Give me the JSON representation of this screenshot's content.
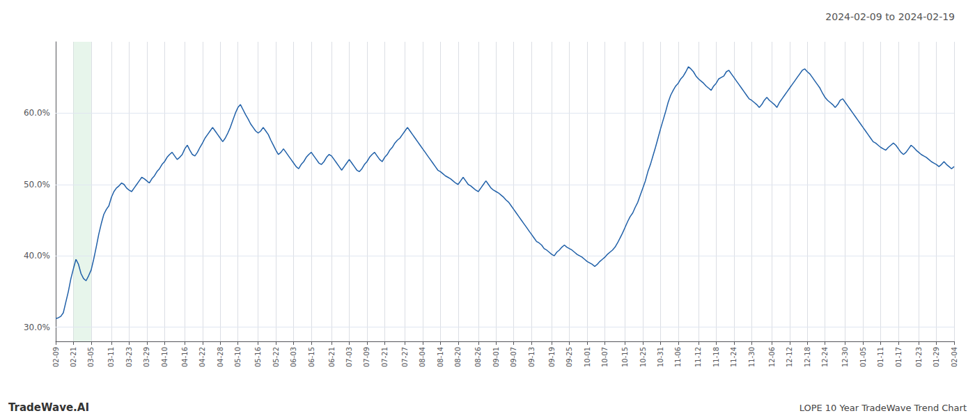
{
  "chart_data": {
    "type": "line",
    "title": "2024-02-09 to 2024-02-19",
    "annotations": [
      "TradeWave.AI",
      "LOPE 10 Year TradeWave Trend Chart"
    ],
    "color": "#2060a8",
    "grid": true,
    "highlight": {
      "x": [
        "02-21",
        "03-05"
      ],
      "color": "#d4edda"
    },
    "ylim": [
      28.0,
      70.0
    ],
    "yticks": [
      {
        "value": 30.0,
        "label": "30.0%"
      },
      {
        "value": 40.0,
        "label": "40.0%"
      },
      {
        "value": 50.0,
        "label": "50.0%"
      },
      {
        "value": 60.0,
        "label": "60.0%"
      }
    ],
    "categories": [
      "02-09",
      null,
      null,
      null,
      null,
      null,
      null,
      "02-21",
      null,
      null,
      null,
      null,
      null,
      null,
      "03-05",
      null,
      null,
      null,
      null,
      null,
      null,
      null,
      "03-11",
      null,
      null,
      null,
      null,
      null,
      null,
      "03-23",
      null,
      null,
      null,
      null,
      null,
      null,
      "03-29",
      null,
      null,
      null,
      null,
      null,
      null,
      "04-10",
      null,
      null,
      null,
      null,
      null,
      null,
      null,
      "04-16",
      null,
      null,
      null,
      null,
      null,
      null,
      "04-22",
      null,
      null,
      null,
      null,
      null,
      null,
      "04-28",
      null,
      null,
      null,
      null,
      null,
      null,
      "05-10",
      null,
      null,
      null,
      null,
      null,
      null,
      null,
      "05-16",
      null,
      null,
      null,
      null,
      null,
      null,
      "05-22",
      null,
      null,
      null,
      null,
      null,
      null,
      "06-03",
      null,
      null,
      null,
      null,
      null,
      null,
      "06-15",
      null,
      null,
      null,
      null,
      null,
      null,
      null,
      "06-21",
      null,
      null,
      null,
      null,
      null,
      null,
      "07-03",
      null,
      null,
      null,
      null,
      null,
      null,
      "07-09",
      null,
      null,
      null,
      null,
      null,
      null,
      "07-21",
      null,
      null,
      null,
      null,
      null,
      null,
      null,
      "07-27",
      null,
      null,
      null,
      null,
      null,
      null,
      "08-04",
      null,
      null,
      null,
      null,
      null,
      null,
      "08-14",
      null,
      null,
      null,
      null,
      null,
      null,
      "08-20",
      null,
      null,
      null,
      null,
      null,
      null,
      null,
      "08-26",
      null,
      null,
      null,
      null,
      null,
      null,
      "09-01",
      null,
      null,
      null,
      null,
      null,
      null,
      "09-07",
      null,
      null,
      null,
      null,
      null,
      null,
      "09-13",
      null,
      null,
      null,
      null,
      null,
      null,
      null,
      "09-19",
      null,
      null,
      null,
      null,
      null,
      null,
      "09-25",
      null,
      null,
      null,
      null,
      null,
      null,
      "10-01",
      null,
      null,
      null,
      null,
      null,
      null,
      "10-07",
      null,
      null,
      null,
      null,
      null,
      null,
      null,
      "10-15",
      null,
      null,
      null,
      null,
      null,
      null,
      "10-25",
      null,
      null,
      null,
      null,
      null,
      null,
      "10-31",
      null,
      null,
      null,
      null,
      null,
      null,
      "11-06",
      null,
      null,
      null,
      null,
      null,
      null,
      null,
      "11-12",
      null,
      null,
      null,
      null,
      null,
      null,
      "11-18",
      null,
      null,
      null,
      null,
      null,
      null,
      "11-24",
      null,
      null,
      null,
      null,
      null,
      null,
      "11-30",
      null,
      null,
      null,
      null,
      null,
      null,
      null,
      "12-06",
      null,
      null,
      null,
      null,
      null,
      null,
      "12-12",
      null,
      null,
      null,
      null,
      null,
      null,
      "12-18",
      null,
      null,
      null,
      null,
      null,
      null,
      "12-24",
      null,
      null,
      null,
      null,
      null,
      null,
      null,
      "12-30",
      null,
      null,
      null,
      null,
      null,
      null,
      "01-05",
      null,
      null,
      null,
      null,
      null,
      null,
      "01-11",
      null,
      null,
      null,
      null,
      null,
      null,
      "01-17",
      null,
      null,
      null,
      null,
      null,
      null,
      null,
      "01-23",
      null,
      null,
      null,
      null,
      null,
      null,
      "01-29",
      null,
      null,
      null,
      null,
      null,
      null,
      "02-04"
    ],
    "values": [
      31.2,
      31.3,
      31.5,
      32.0,
      33.5,
      35.0,
      36.8,
      38.2,
      39.5,
      38.8,
      37.5,
      36.8,
      36.5,
      37.2,
      38.0,
      39.5,
      41.2,
      43.0,
      44.5,
      45.8,
      46.5,
      47.0,
      48.2,
      49.0,
      49.5,
      49.8,
      50.2,
      50.0,
      49.5,
      49.2,
      49.0,
      49.5,
      50.0,
      50.5,
      51.0,
      50.8,
      50.5,
      50.2,
      50.8,
      51.2,
      51.8,
      52.2,
      52.8,
      53.2,
      53.8,
      54.2,
      54.5,
      54.0,
      53.5,
      53.8,
      54.2,
      55.0,
      55.5,
      54.8,
      54.2,
      54.0,
      54.5,
      55.2,
      55.8,
      56.5,
      57.0,
      57.5,
      58.0,
      57.5,
      57.0,
      56.5,
      56.0,
      56.5,
      57.2,
      58.0,
      59.0,
      60.0,
      60.8,
      61.2,
      60.5,
      59.8,
      59.2,
      58.5,
      58.0,
      57.5,
      57.2,
      57.5,
      58.0,
      57.5,
      57.0,
      56.2,
      55.5,
      54.8,
      54.2,
      54.5,
      55.0,
      54.5,
      54.0,
      53.5,
      53.0,
      52.5,
      52.2,
      52.8,
      53.2,
      53.8,
      54.2,
      54.5,
      54.0,
      53.5,
      53.0,
      52.8,
      53.2,
      53.8,
      54.2,
      54.0,
      53.5,
      53.0,
      52.5,
      52.0,
      52.5,
      53.0,
      53.5,
      53.0,
      52.5,
      52.0,
      51.8,
      52.2,
      52.8,
      53.2,
      53.8,
      54.2,
      54.5,
      54.0,
      53.5,
      53.2,
      53.8,
      54.2,
      54.8,
      55.2,
      55.8,
      56.2,
      56.5,
      57.0,
      57.5,
      58.0,
      57.5,
      57.0,
      56.5,
      56.0,
      55.5,
      55.0,
      54.5,
      54.0,
      53.5,
      53.0,
      52.5,
      52.0,
      51.8,
      51.5,
      51.2,
      51.0,
      50.8,
      50.5,
      50.2,
      50.0,
      50.5,
      51.0,
      50.5,
      50.0,
      49.8,
      49.5,
      49.2,
      49.0,
      49.5,
      50.0,
      50.5,
      50.0,
      49.5,
      49.2,
      49.0,
      48.8,
      48.5,
      48.2,
      47.8,
      47.5,
      47.0,
      46.5,
      46.0,
      45.5,
      45.0,
      44.5,
      44.0,
      43.5,
      43.0,
      42.5,
      42.0,
      41.8,
      41.5,
      41.0,
      40.8,
      40.5,
      40.2,
      40.0,
      40.5,
      40.8,
      41.2,
      41.5,
      41.2,
      41.0,
      40.8,
      40.5,
      40.2,
      40.0,
      39.8,
      39.5,
      39.2,
      39.0,
      38.8,
      38.5,
      38.8,
      39.2,
      39.5,
      39.8,
      40.2,
      40.5,
      40.8,
      41.2,
      41.8,
      42.5,
      43.2,
      44.0,
      44.8,
      45.5,
      46.0,
      46.8,
      47.5,
      48.5,
      49.5,
      50.5,
      51.8,
      52.8,
      54.0,
      55.2,
      56.5,
      57.8,
      59.0,
      60.2,
      61.5,
      62.5,
      63.2,
      63.8,
      64.2,
      64.8,
      65.2,
      65.8,
      66.5,
      66.2,
      65.8,
      65.2,
      64.8,
      64.5,
      64.2,
      63.8,
      63.5,
      63.2,
      63.8,
      64.2,
      64.8,
      65.0,
      65.2,
      65.8,
      66.0,
      65.5,
      65.0,
      64.5,
      64.0,
      63.5,
      63.0,
      62.5,
      62.0,
      61.8,
      61.5,
      61.2,
      60.8,
      61.2,
      61.8,
      62.2,
      61.8,
      61.5,
      61.2,
      60.8,
      61.5,
      62.0,
      62.5,
      63.0,
      63.5,
      64.0,
      64.5,
      65.0,
      65.5,
      66.0,
      66.2,
      65.8,
      65.5,
      65.0,
      64.5,
      64.0,
      63.5,
      62.8,
      62.2,
      61.8,
      61.5,
      61.2,
      60.8,
      61.2,
      61.8,
      62.0,
      61.5,
      61.0,
      60.5,
      60.0,
      59.5,
      59.0,
      58.5,
      58.0,
      57.5,
      57.0,
      56.5,
      56.0,
      55.8,
      55.5,
      55.2,
      55.0,
      54.8,
      55.2,
      55.5,
      55.8,
      55.5,
      55.0,
      54.5,
      54.2,
      54.5,
      55.0,
      55.5,
      55.2,
      54.8,
      54.5,
      54.2,
      54.0,
      53.8,
      53.5,
      53.2,
      53.0,
      52.8,
      52.5,
      52.8,
      53.2,
      52.8,
      52.5,
      52.2,
      52.5
    ]
  }
}
